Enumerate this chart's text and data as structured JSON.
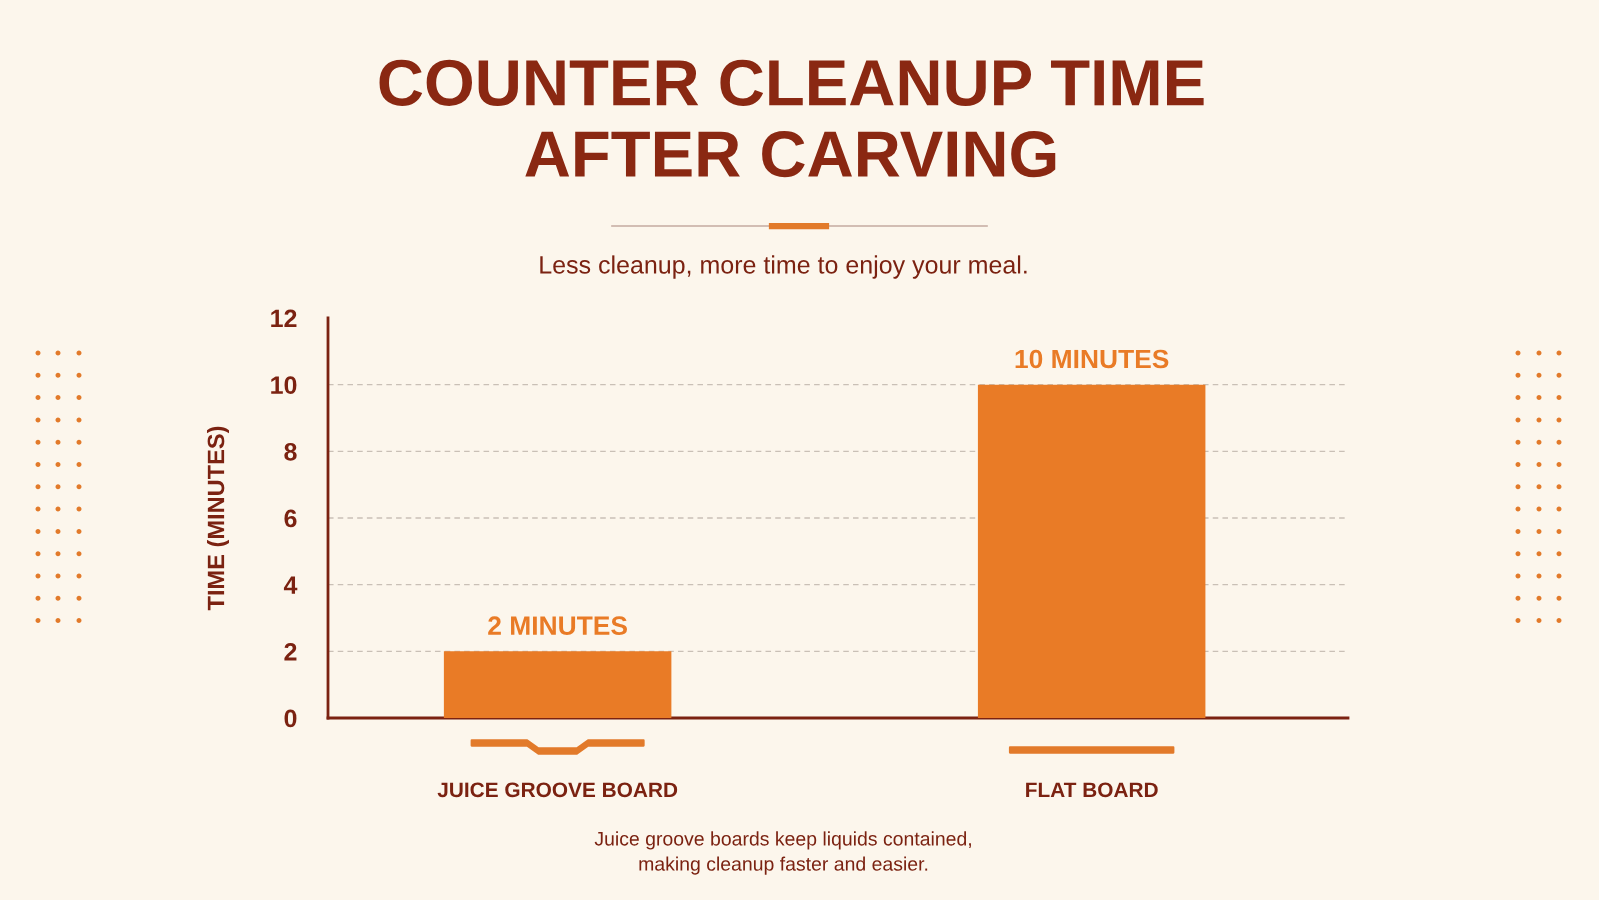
{
  "chart_data": {
    "type": "bar",
    "title": "COUNTER CLEANUP TIME\nAFTER CARVING",
    "subtitle": "Less cleanup, more time to enjoy your meal.",
    "ylabel": "TIME (MINUTES)",
    "categories": [
      "JUICE GROOVE BOARD",
      "FLAT BOARD"
    ],
    "values": [
      2,
      10
    ],
    "color": "#e97b26",
    "value_labels": [
      "2 MINUTES",
      "10 MINUTES"
    ],
    "ylim": [
      0,
      12
    ],
    "yticks": [
      0,
      2,
      4,
      6,
      8,
      10,
      12
    ],
    "grid": "y",
    "annotations": [
      "Juice groove boards keep liquids contained,\nmaking cleanup faster and easier."
    ]
  }
}
